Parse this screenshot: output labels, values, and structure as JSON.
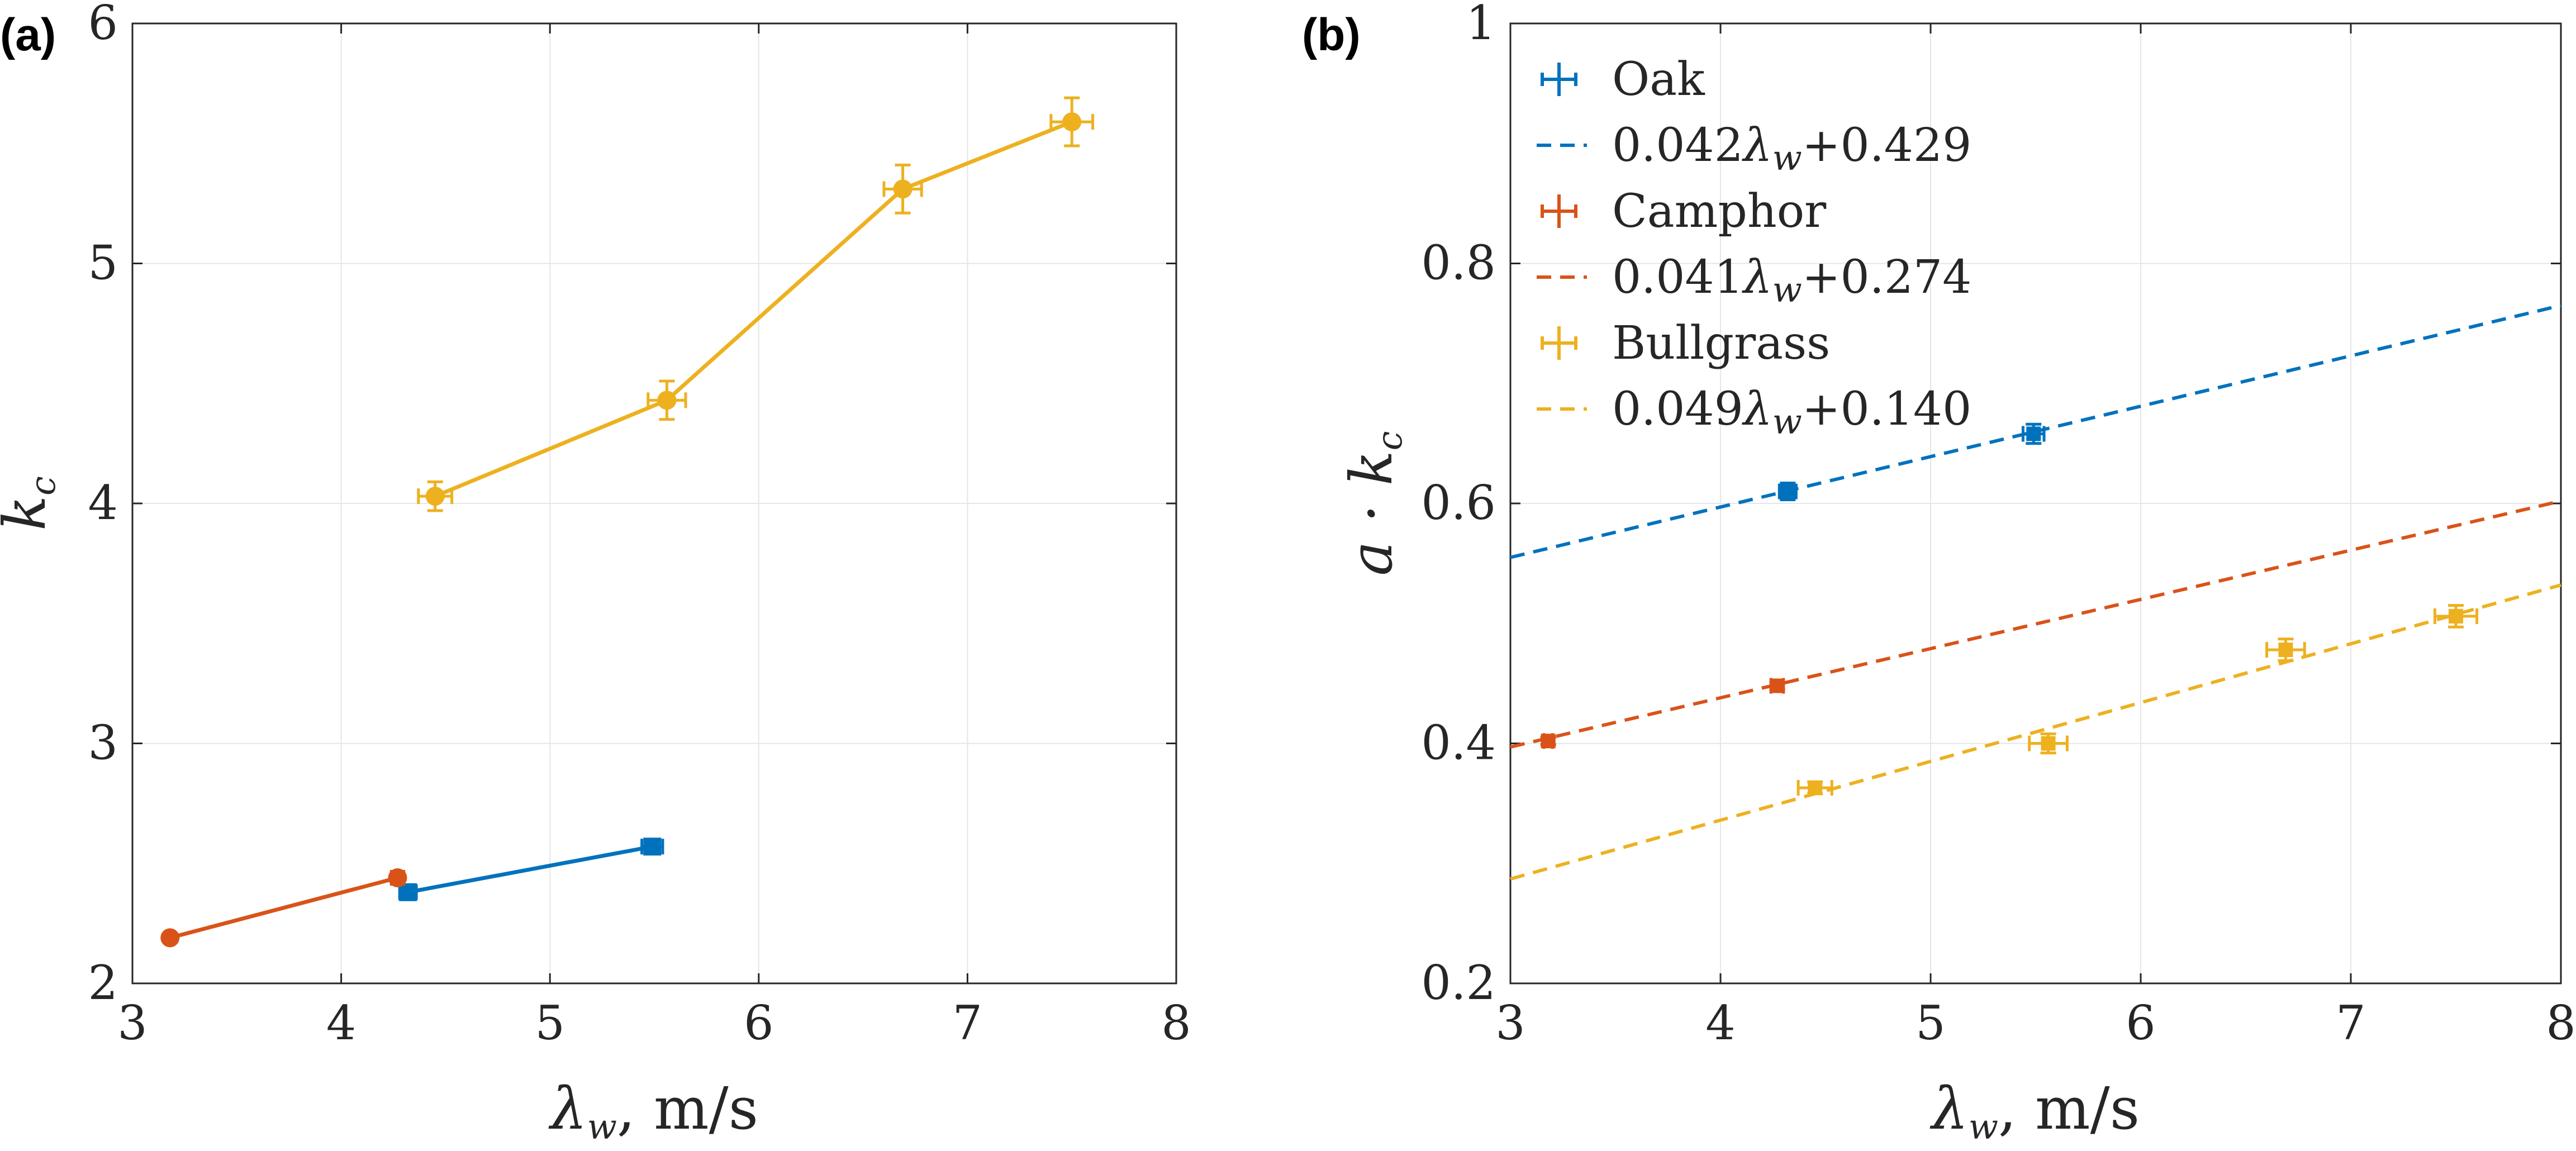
{
  "chart_data": [
    {
      "type": "line",
      "panel_label": "(a)",
      "xlabel_var": "λ",
      "xlabel_sub": "w",
      "xlabel_rest": ", m/s",
      "ylabel_var": "k",
      "ylabel_sub": "c",
      "xlim": [
        3,
        8
      ],
      "ylim": [
        2,
        6
      ],
      "xticks": [
        "3",
        "4",
        "5",
        "6",
        "7",
        "8"
      ],
      "yticks": [
        "2",
        "3",
        "4",
        "5",
        "6"
      ],
      "grid": true,
      "series": [
        {
          "name": "Oak",
          "color": "#0072BD",
          "marker": "square",
          "x": [
            4.32,
            5.49
          ],
          "y": [
            2.38,
            2.57
          ],
          "xerr": [
            0.04,
            0.05
          ],
          "yerr": [
            0.02,
            0.03
          ]
        },
        {
          "name": "Camphor",
          "color": "#D95319",
          "marker": "circle",
          "x": [
            3.18,
            4.27
          ],
          "y": [
            2.19,
            2.44
          ],
          "xerr": [
            0.02,
            0.03
          ],
          "yerr": [
            0.01,
            0.01
          ]
        },
        {
          "name": "Bullgrass",
          "color": "#EDB120",
          "marker": "circle",
          "x": [
            4.45,
            5.56,
            6.69,
            7.5
          ],
          "y": [
            4.03,
            4.43,
            5.31,
            5.59
          ],
          "xerr": [
            0.08,
            0.09,
            0.09,
            0.1
          ],
          "yerr": [
            0.06,
            0.08,
            0.1,
            0.1
          ]
        }
      ]
    },
    {
      "type": "scatter",
      "panel_label": "(b)",
      "xlabel_var": "λ",
      "xlabel_sub": "w",
      "xlabel_rest": ", m/s",
      "ylabel": "a · k",
      "ylabel_sub": "c",
      "xlim": [
        3,
        8
      ],
      "ylim": [
        0.2,
        1
      ],
      "xticks": [
        "3",
        "4",
        "5",
        "6",
        "7",
        "8"
      ],
      "yticks": [
        "0.2",
        "0.4",
        "0.6",
        "0.8",
        "1"
      ],
      "grid": true,
      "legend_position": "top-left",
      "series": [
        {
          "name": "Oak",
          "color": "#0072BD",
          "x": [
            4.32,
            5.49
          ],
          "y": [
            0.61,
            0.658
          ],
          "xerr": [
            0.04,
            0.05
          ],
          "yerr": [
            0.007,
            0.008
          ],
          "fit": {
            "slope": 0.042,
            "intercept": 0.429,
            "label_a": "0.042",
            "label_b": "+0.429"
          }
        },
        {
          "name": "Camphor",
          "color": "#D95319",
          "x": [
            3.18,
            4.27
          ],
          "y": [
            0.402,
            0.448
          ],
          "xerr": [
            0.02,
            0.03
          ],
          "yerr": [
            0.003,
            0.003
          ],
          "fit": {
            "slope": 0.041,
            "intercept": 0.274,
            "label_a": "0.041",
            "label_b": "+0.274"
          }
        },
        {
          "name": "Bullgrass",
          "color": "#EDB120",
          "x": [
            4.45,
            5.56,
            6.69,
            7.5
          ],
          "y": [
            0.363,
            0.4,
            0.478,
            0.506
          ],
          "xerr": [
            0.08,
            0.09,
            0.09,
            0.1
          ],
          "yerr": [
            0.005,
            0.008,
            0.009,
            0.009
          ],
          "fit": {
            "slope": 0.049,
            "intercept": 0.14,
            "label_a": "0.049",
            "label_b": "+0.140"
          }
        }
      ]
    }
  ]
}
